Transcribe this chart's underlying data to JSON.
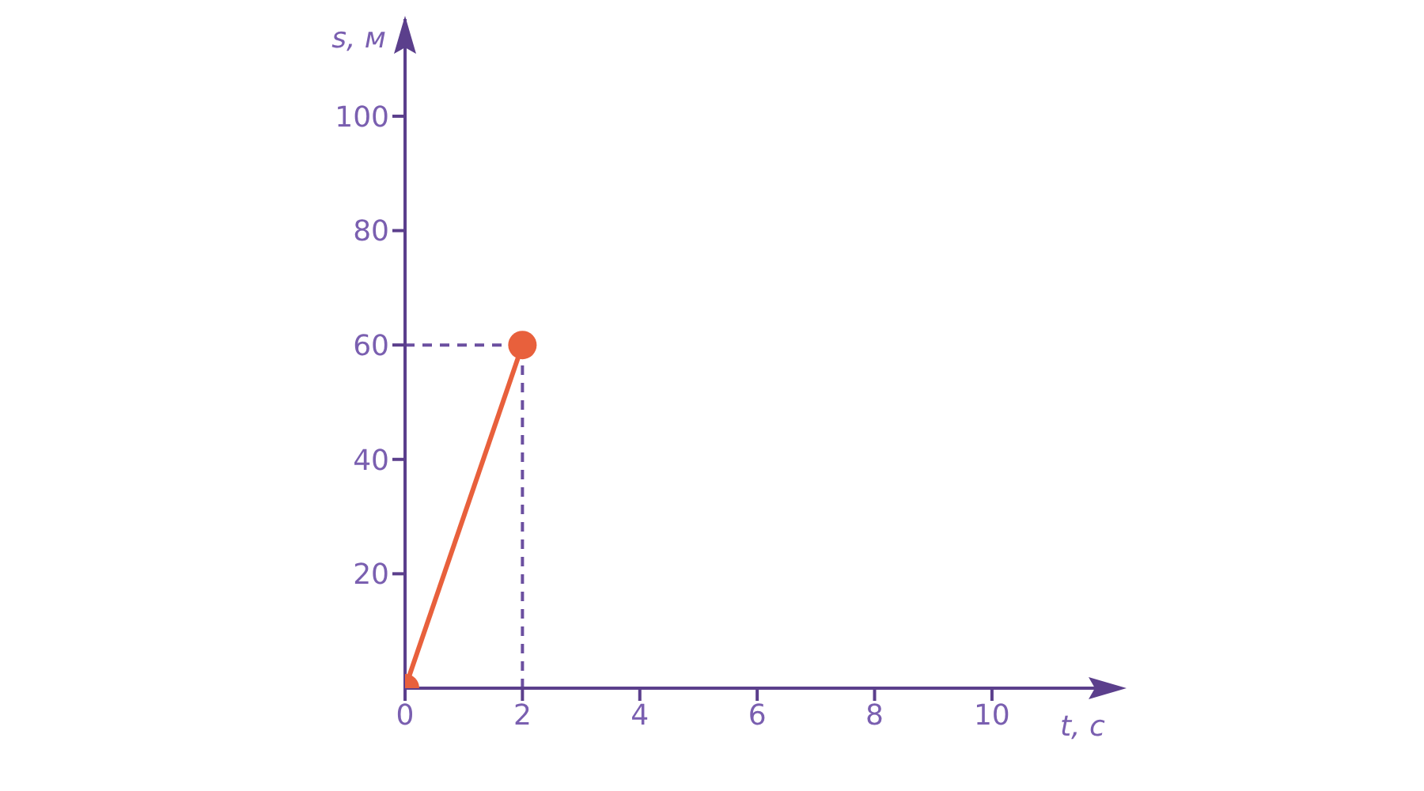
{
  "chart_data": {
    "type": "line",
    "xlabel": "t, с",
    "ylabel": "s, м",
    "x": [
      0,
      2
    ],
    "series": [
      {
        "color": "#e8603c",
        "values": [
          0,
          60
        ]
      }
    ],
    "xlim": [
      0,
      11.7
    ],
    "ylim": [
      0,
      117
    ],
    "xticks": [
      0,
      2,
      4,
      6,
      8,
      10
    ],
    "yticks": [
      20,
      40,
      60,
      80,
      100
    ],
    "ref_lines": [
      {
        "axis": "x",
        "value": 2,
        "color": "#6b4fa0",
        "line_style": "dashed"
      },
      {
        "axis": "y",
        "value": 60,
        "color": "#6b4fa0",
        "line_style": "dashed"
      }
    ],
    "marker": "circle",
    "line_style": "solid",
    "grid": false,
    "legend": false
  }
}
